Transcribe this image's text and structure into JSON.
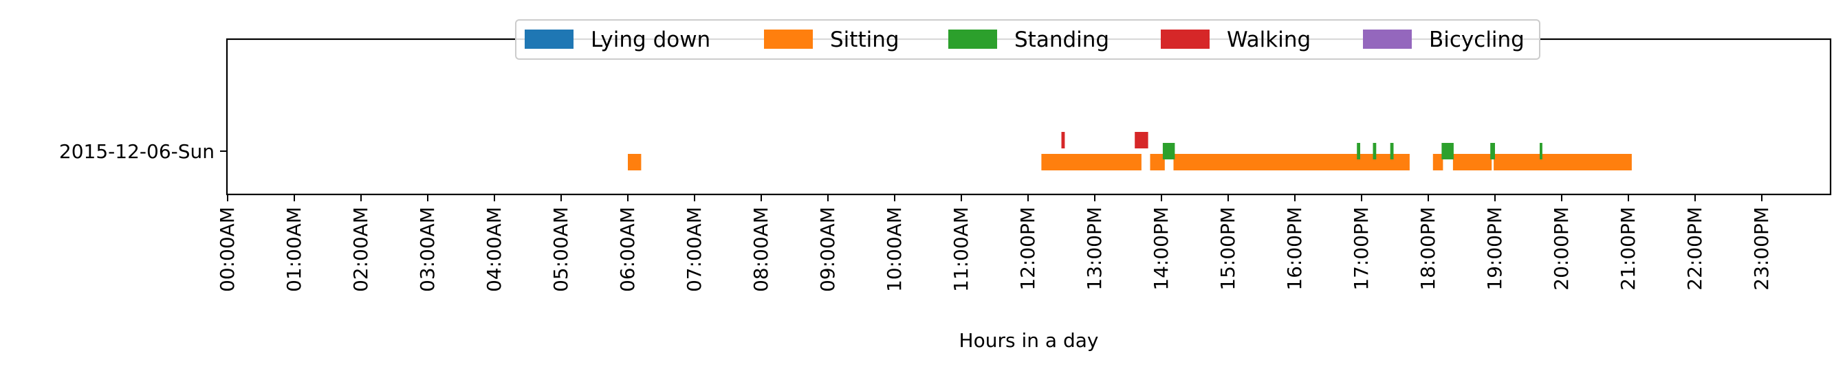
{
  "chart_data": {
    "type": "timeline",
    "title": "",
    "xlabel": "Hours in a day",
    "ylabel": "",
    "x_unit": "hours",
    "xlim": [
      0,
      24
    ],
    "grid": false,
    "legend_position": "top-center",
    "categories": [
      "2015-12-06-Sun"
    ],
    "x_tick_labels": [
      "00:00AM",
      "01:00AM",
      "02:00AM",
      "03:00AM",
      "04:00AM",
      "05:00AM",
      "06:00AM",
      "07:00AM",
      "08:00AM",
      "09:00AM",
      "10:00AM",
      "11:00AM",
      "12:00PM",
      "13:00PM",
      "14:00PM",
      "15:00PM",
      "16:00PM",
      "17:00PM",
      "18:00PM",
      "19:00PM",
      "20:00PM",
      "21:00PM",
      "22:00PM",
      "23:00PM"
    ],
    "series": [
      {
        "name": "Lying down",
        "color": "#1f77b4",
        "segments": []
      },
      {
        "name": "Sitting",
        "color": "#ff7f0e",
        "segments": [
          [
            6.0,
            6.2
          ],
          [
            12.2,
            13.7
          ],
          [
            13.83,
            14.05
          ],
          [
            14.18,
            17.72
          ],
          [
            18.07,
            18.22
          ],
          [
            18.37,
            18.95
          ],
          [
            18.98,
            21.05
          ]
        ]
      },
      {
        "name": "Standing",
        "color": "#2ca02c",
        "segments": [
          [
            14.02,
            14.2
          ],
          [
            16.93,
            16.98
          ],
          [
            17.17,
            17.22
          ],
          [
            17.43,
            17.48
          ],
          [
            18.2,
            18.38
          ],
          [
            18.93,
            19.0
          ],
          [
            19.67,
            19.71
          ]
        ]
      },
      {
        "name": "Walking",
        "color": "#d62728",
        "segments": [
          [
            12.5,
            12.55
          ],
          [
            13.6,
            13.8
          ]
        ]
      },
      {
        "name": "Bicycling",
        "color": "#9467bd",
        "segments": []
      }
    ]
  }
}
